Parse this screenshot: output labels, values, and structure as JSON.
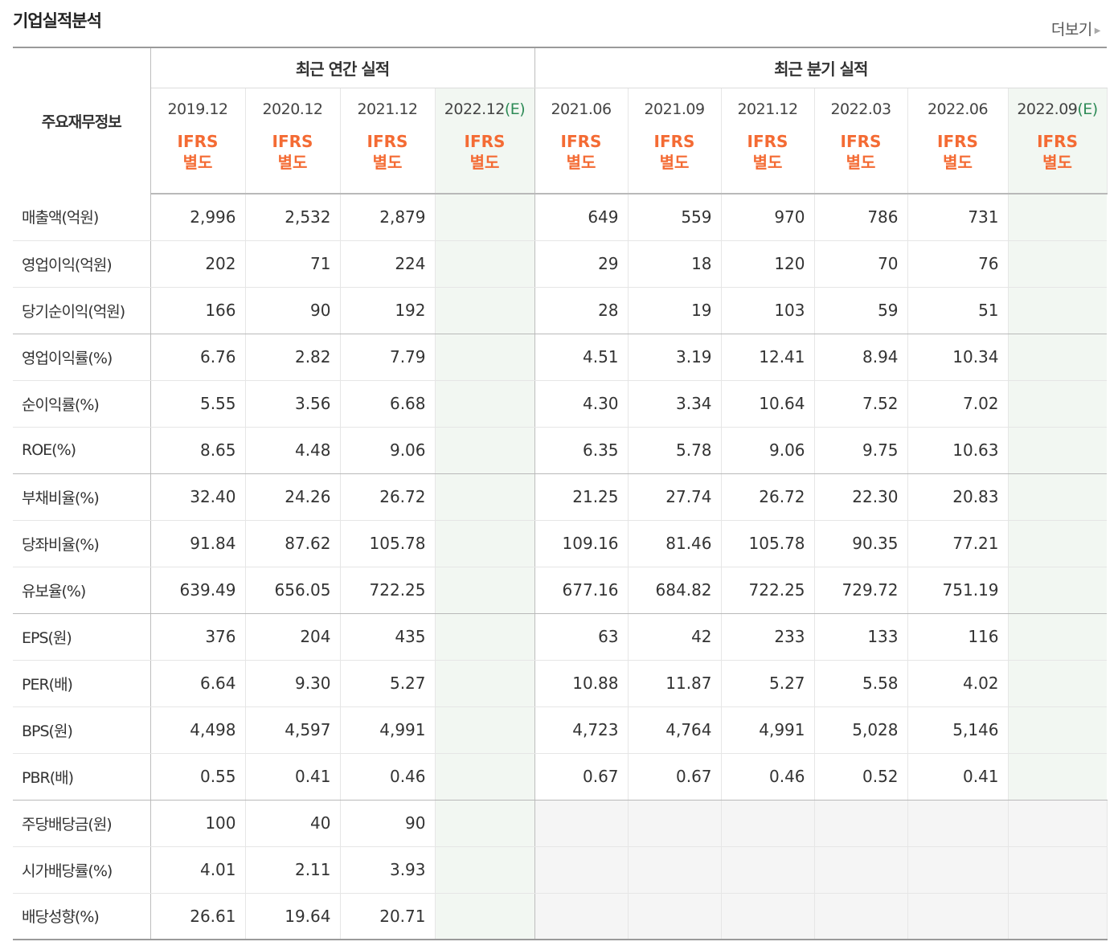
{
  "title": "기업실적분석",
  "more_label": "더보기",
  "header": {
    "label_col": "주요재무정보",
    "annual_group": "최근 연간 실적",
    "quarter_group": "최근 분기 실적",
    "annual_dates": [
      "2019.12",
      "2020.12",
      "2021.12",
      "2022.12"
    ],
    "quarter_dates": [
      "2021.06",
      "2021.09",
      "2021.12",
      "2022.03",
      "2022.06",
      "2022.09"
    ],
    "estimate_mark": "(E)",
    "ifrs_line1": "IFRS",
    "ifrs_line2": "별도"
  },
  "rows": [
    {
      "label": "매출액(억원)",
      "annual": [
        "2,996",
        "2,532",
        "2,879",
        ""
      ],
      "quarter": [
        "649",
        "559",
        "970",
        "786",
        "731",
        ""
      ]
    },
    {
      "label": "영업이익(억원)",
      "annual": [
        "202",
        "71",
        "224",
        ""
      ],
      "quarter": [
        "29",
        "18",
        "120",
        "70",
        "76",
        ""
      ]
    },
    {
      "label": "당기순이익(억원)",
      "annual": [
        "166",
        "90",
        "192",
        ""
      ],
      "quarter": [
        "28",
        "19",
        "103",
        "59",
        "51",
        ""
      ]
    },
    {
      "label": "영업이익률(%)",
      "annual": [
        "6.76",
        "2.82",
        "7.79",
        ""
      ],
      "quarter": [
        "4.51",
        "3.19",
        "12.41",
        "8.94",
        "10.34",
        ""
      ]
    },
    {
      "label": "순이익률(%)",
      "annual": [
        "5.55",
        "3.56",
        "6.68",
        ""
      ],
      "quarter": [
        "4.30",
        "3.34",
        "10.64",
        "7.52",
        "7.02",
        ""
      ]
    },
    {
      "label": "ROE(%)",
      "annual": [
        "8.65",
        "4.48",
        "9.06",
        ""
      ],
      "quarter": [
        "6.35",
        "5.78",
        "9.06",
        "9.75",
        "10.63",
        ""
      ]
    },
    {
      "label": "부채비율(%)",
      "annual": [
        "32.40",
        "24.26",
        "26.72",
        ""
      ],
      "quarter": [
        "21.25",
        "27.74",
        "26.72",
        "22.30",
        "20.83",
        ""
      ]
    },
    {
      "label": "당좌비율(%)",
      "annual": [
        "91.84",
        "87.62",
        "105.78",
        ""
      ],
      "quarter": [
        "109.16",
        "81.46",
        "105.78",
        "90.35",
        "77.21",
        ""
      ]
    },
    {
      "label": "유보율(%)",
      "annual": [
        "639.49",
        "656.05",
        "722.25",
        ""
      ],
      "quarter": [
        "677.16",
        "684.82",
        "722.25",
        "729.72",
        "751.19",
        ""
      ]
    },
    {
      "label": "EPS(원)",
      "annual": [
        "376",
        "204",
        "435",
        ""
      ],
      "quarter": [
        "63",
        "42",
        "233",
        "133",
        "116",
        ""
      ]
    },
    {
      "label": "PER(배)",
      "annual": [
        "6.64",
        "9.30",
        "5.27",
        ""
      ],
      "quarter": [
        "10.88",
        "11.87",
        "5.27",
        "5.58",
        "4.02",
        ""
      ]
    },
    {
      "label": "BPS(원)",
      "annual": [
        "4,498",
        "4,597",
        "4,991",
        ""
      ],
      "quarter": [
        "4,723",
        "4,764",
        "4,991",
        "5,028",
        "5,146",
        ""
      ]
    },
    {
      "label": "PBR(배)",
      "annual": [
        "0.55",
        "0.41",
        "0.46",
        ""
      ],
      "quarter": [
        "0.67",
        "0.67",
        "0.46",
        "0.52",
        "0.41",
        ""
      ]
    },
    {
      "label": "주당배당금(원)",
      "annual": [
        "100",
        "40",
        "90",
        ""
      ],
      "quarter": null
    },
    {
      "label": "시가배당률(%)",
      "annual": [
        "4.01",
        "2.11",
        "3.93",
        ""
      ],
      "quarter": null
    },
    {
      "label": "배당성향(%)",
      "annual": [
        "26.61",
        "19.64",
        "20.71",
        ""
      ],
      "quarter": null
    }
  ]
}
